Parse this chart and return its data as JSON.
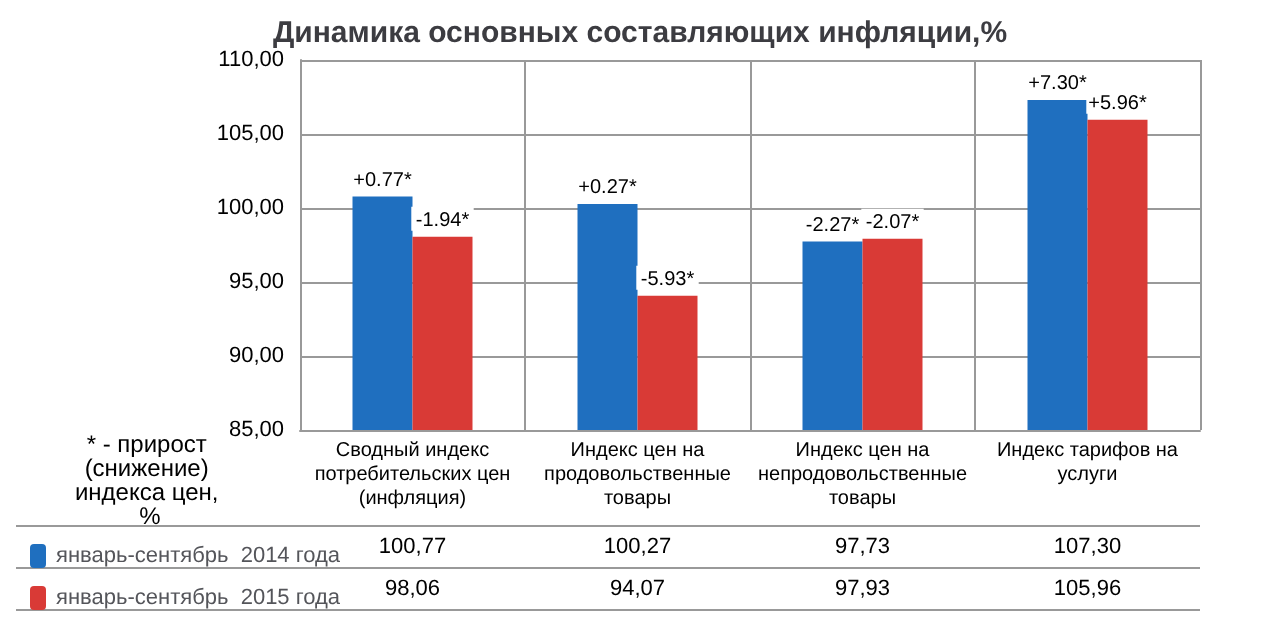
{
  "chart_data": {
    "type": "bar",
    "title": "Динамика основных составляющих инфляции,%",
    "categories": [
      "Сводный индекс потребительских цен (инфляция)",
      "Индекс цен на продовольственные товары",
      "Индекс цен на непродовольственные товары",
      "Индекс тарифов на услуги"
    ],
    "series": [
      {
        "name": "январь-сентябрь  2014 года",
        "color": "#1f6fbf",
        "values": [
          100.77,
          100.27,
          97.73,
          107.3
        ],
        "value_labels": [
          "100,77",
          "100,27",
          "97,73",
          "107,30"
        ]
      },
      {
        "name": "январь-сентябрь  2015 года",
        "color": "#d93a36",
        "values": [
          98.06,
          94.07,
          97.93,
          105.96
        ],
        "value_labels": [
          "98,06",
          "94,07",
          "97,93",
          "105,96"
        ]
      }
    ],
    "ylim": [
      85,
      110
    ],
    "yticks": [
      {
        "value": 85,
        "label": "85,00"
      },
      {
        "value": 90,
        "label": "90,00"
      },
      {
        "value": 95,
        "label": "95,00"
      },
      {
        "value": 100,
        "label": "100,00"
      },
      {
        "value": 105,
        "label": "105,00"
      },
      {
        "value": 110,
        "label": "110,00"
      }
    ],
    "grid": true,
    "legend": "bottom left",
    "annotations": [
      "* - прирост (снижение) индекса цен, %",
      {
        "text": "+0.77*",
        "x": "Сводный индекс потребительских цен (инфляция)",
        "y": 100.77
      },
      {
        "text": "+0.27*",
        "x": "Индекс цен на продовольственные товары",
        "y": 100.27
      },
      {
        "text": "-2.27*",
        "x": "Индекс цен на непродовольственные товары",
        "y": 97.73
      },
      {
        "text": "+7.30*",
        "x": "Индекс тарифов на услуги",
        "y": 107.3
      },
      {
        "text": "-1.94*",
        "x": "Сводный индекс потребительских цен (инфляция)",
        "y": 98.06
      },
      {
        "text": "-5.93*",
        "x": "Индекс цен на продовольственные товары",
        "y": 94.07
      },
      {
        "text": "-2.07*",
        "x": "Индекс цен на непродовольственные товары",
        "y": 97.93
      },
      {
        "text": "+5.96*",
        "x": "Индекс тарифов на услуги",
        "y": 105.96
      }
    ]
  }
}
